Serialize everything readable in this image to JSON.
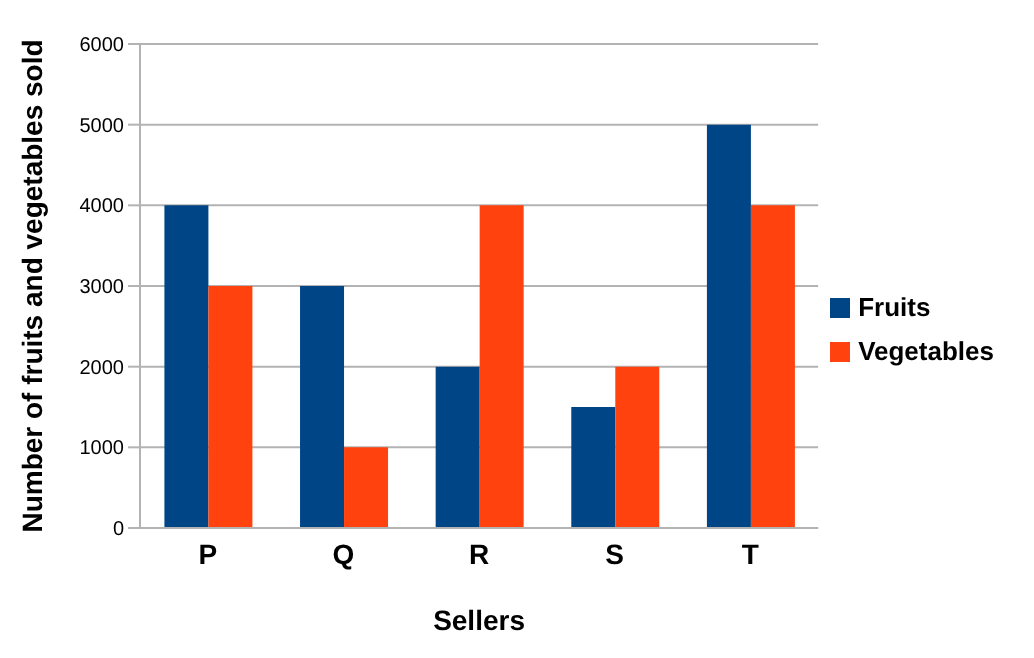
{
  "chart_data": {
    "type": "bar",
    "xlabel": "Sellers",
    "ylabel": "Number of fruits and vegetables sold",
    "categories": [
      "P",
      "Q",
      "R",
      "S",
      "T"
    ],
    "series": [
      {
        "name": "Fruits",
        "color": "#004586",
        "values": [
          4000,
          3000,
          2000,
          1500,
          5000
        ]
      },
      {
        "name": "Vegetables",
        "color": "#ff420e",
        "values": [
          3000,
          1000,
          4000,
          2000,
          4000
        ]
      }
    ],
    "ylim": [
      0,
      6000
    ],
    "yticks": [
      0,
      1000,
      2000,
      3000,
      4000,
      5000,
      6000
    ],
    "grid": "y",
    "legend": "right"
  }
}
